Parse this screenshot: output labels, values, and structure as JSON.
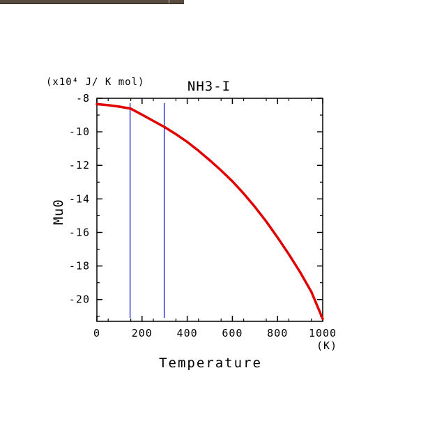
{
  "window": {
    "topbar_color": "#5a4d40"
  },
  "chart_data": {
    "type": "line",
    "title": "NH3-I",
    "unit_label": "(x10⁴ J/ K mol)",
    "xlabel": "Temperature",
    "xunit": "(K)",
    "ylabel": "Mu0",
    "xlim": [
      0,
      1000
    ],
    "ylim": [
      -21.3,
      -8
    ],
    "x_ticks": [
      0,
      200,
      400,
      600,
      800,
      1000
    ],
    "y_ticks": [
      -8,
      -10,
      -12,
      -14,
      -16,
      -18,
      -20
    ],
    "x_tick_labels": [
      "0",
      "200",
      "400",
      "600",
      "800",
      "1000"
    ],
    "y_tick_labels": [
      "-8",
      "-10",
      "-12",
      "-14",
      "-16",
      "-18",
      "-20"
    ],
    "grid": false,
    "vertical_lines": [
      {
        "x": 147,
        "color": "#0000cc"
      },
      {
        "x": 298,
        "color": "#0000cc"
      }
    ],
    "series": [
      {
        "color": "#e00000",
        "x": [
          0,
          50,
          100,
          150,
          200,
          250,
          300,
          350,
          400,
          450,
          500,
          550,
          600,
          650,
          700,
          750,
          800,
          850,
          900,
          950,
          1000
        ],
        "values": [
          -8.35,
          -8.41,
          -8.5,
          -8.62,
          -8.98,
          -9.35,
          -9.72,
          -10.14,
          -10.6,
          -11.13,
          -11.7,
          -12.3,
          -12.95,
          -13.68,
          -14.48,
          -15.35,
          -16.3,
          -17.3,
          -18.37,
          -19.55,
          -21.15
        ]
      }
    ]
  }
}
